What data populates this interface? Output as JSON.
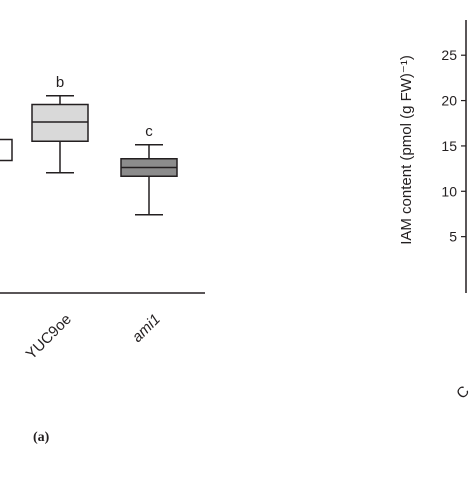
{
  "chart_data": [
    {
      "type": "box",
      "panel_label": "(a)",
      "categories": [
        "",
        "YUC9oe",
        "ami1"
      ],
      "category_italic": [
        false,
        false,
        true
      ],
      "significance_letters": [
        "",
        "b",
        "c"
      ],
      "boxes": [
        {
          "category": "",
          "fill": "#ffffff",
          "min": null,
          "q1": 19.4,
          "median": null,
          "q3": 20.6,
          "max": null
        },
        {
          "category": "YUC9oe",
          "fill": "#d9d9d9",
          "min": 18.7,
          "q1": 20.5,
          "median": 21.6,
          "q3": 22.6,
          "max": 23.1
        },
        {
          "category": "ami1",
          "fill": "#8c8c8c",
          "min": 16.3,
          "q1": 18.5,
          "median": 19.0,
          "q3": 19.5,
          "max": 20.3
        }
      ]
    },
    {
      "type": "box",
      "ylabel": "IAM content (pmol (g FW)⁻¹)",
      "yticks": [
        5,
        10,
        15,
        20,
        25
      ],
      "ylim": [
        0,
        28
      ],
      "categories": [
        "C"
      ]
    }
  ]
}
